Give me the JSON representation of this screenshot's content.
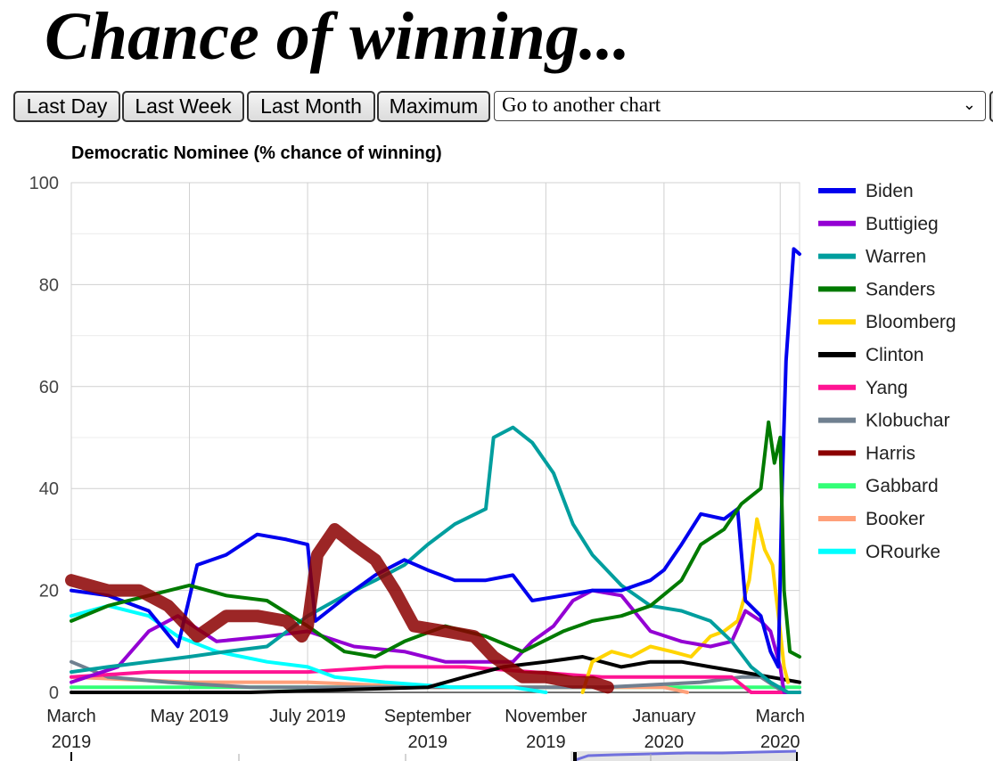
{
  "header": {
    "title": "Chance of winning..."
  },
  "toolbar": {
    "buttons": [
      {
        "label": "Last Day"
      },
      {
        "label": "Last Week"
      },
      {
        "label": "Last Month"
      },
      {
        "label": "Maximum"
      }
    ],
    "select": {
      "value": "Go to another chart",
      "icon": "chevron-down-icon"
    }
  },
  "chart_data": {
    "type": "line",
    "title": "Democratic Nominee (% chance of winning)",
    "xlabel": "",
    "ylabel": "",
    "ylim": [
      0,
      100
    ],
    "xlim": [
      "2019-03-01",
      "2020-03-11"
    ],
    "y_ticks": [
      "0",
      "20",
      "40",
      "60",
      "80",
      "100"
    ],
    "x_ticks": [
      {
        "date": "2019-03-01",
        "lines": [
          "March",
          "2019"
        ]
      },
      {
        "date": "2019-05-01",
        "lines": [
          "May 2019"
        ]
      },
      {
        "date": "2019-07-01",
        "lines": [
          "July 2019"
        ]
      },
      {
        "date": "2019-09-01",
        "lines": [
          "September",
          "2019"
        ]
      },
      {
        "date": "2019-11-01",
        "lines": [
          "November",
          "2019"
        ]
      },
      {
        "date": "2020-01-01",
        "lines": [
          "January",
          "2020"
        ]
      },
      {
        "date": "2020-03-01",
        "lines": [
          "March",
          "2020"
        ]
      }
    ],
    "grid": true,
    "legend_position": "right",
    "series": [
      {
        "name": "Biden",
        "color": "#0000ee",
        "x": [
          "2019-03-01",
          "2019-03-20",
          "2019-04-10",
          "2019-04-25",
          "2019-05-05",
          "2019-05-20",
          "2019-06-05",
          "2019-06-20",
          "2019-07-01",
          "2019-07-05",
          "2019-07-15",
          "2019-07-25",
          "2019-08-05",
          "2019-08-20",
          "2019-09-01",
          "2019-09-15",
          "2019-10-01",
          "2019-10-15",
          "2019-10-25",
          "2019-11-10",
          "2019-11-25",
          "2019-12-10",
          "2019-12-25",
          "2020-01-01",
          "2020-01-10",
          "2020-01-20",
          "2020-02-01",
          "2020-02-08",
          "2020-02-12",
          "2020-02-20",
          "2020-02-25",
          "2020-02-29",
          "2020-03-02",
          "2020-03-04",
          "2020-03-08",
          "2020-03-11"
        ],
        "y": [
          20,
          19,
          16,
          9,
          25,
          27,
          31,
          30,
          29,
          14,
          17,
          20,
          23,
          26,
          24,
          22,
          22,
          23,
          18,
          19,
          20,
          20,
          22,
          24,
          29,
          35,
          34,
          36,
          18,
          15,
          8,
          5,
          40,
          65,
          87,
          86
        ]
      },
      {
        "name": "Buttigieg",
        "color": "#9400d3",
        "x": [
          "2019-03-01",
          "2019-03-25",
          "2019-04-10",
          "2019-04-25",
          "2019-05-15",
          "2019-06-10",
          "2019-07-01",
          "2019-07-25",
          "2019-08-20",
          "2019-09-10",
          "2019-09-25",
          "2019-10-15",
          "2019-10-25",
          "2019-11-05",
          "2019-11-15",
          "2019-11-25",
          "2019-12-10",
          "2019-12-25",
          "2020-01-10",
          "2020-01-25",
          "2020-02-05",
          "2020-02-12",
          "2020-02-20",
          "2020-02-25",
          "2020-03-01",
          "2020-03-03",
          "2020-03-11"
        ],
        "y": [
          2,
          5,
          12,
          15,
          10,
          11,
          12,
          9,
          8,
          6,
          6,
          6,
          10,
          13,
          18,
          20,
          19,
          12,
          10,
          9,
          10,
          16,
          14,
          12,
          5,
          0,
          0
        ]
      },
      {
        "name": "Warren",
        "color": "#009e9e",
        "x": [
          "2019-03-01",
          "2019-03-20",
          "2019-04-10",
          "2019-05-01",
          "2019-05-20",
          "2019-06-10",
          "2019-07-01",
          "2019-07-20",
          "2019-08-05",
          "2019-08-20",
          "2019-09-01",
          "2019-09-15",
          "2019-10-01",
          "2019-10-05",
          "2019-10-15",
          "2019-10-25",
          "2019-11-05",
          "2019-11-15",
          "2019-11-25",
          "2019-12-10",
          "2019-12-25",
          "2020-01-10",
          "2020-01-25",
          "2020-02-05",
          "2020-02-15",
          "2020-02-25",
          "2020-03-05",
          "2020-03-11"
        ],
        "y": [
          4,
          5,
          6,
          7,
          8,
          9,
          15,
          19,
          22,
          25,
          29,
          33,
          36,
          50,
          52,
          49,
          43,
          33,
          27,
          21,
          17,
          16,
          14,
          10,
          5,
          2,
          0,
          0
        ]
      },
      {
        "name": "Sanders",
        "color": "#007a00",
        "x": [
          "2019-03-01",
          "2019-03-20",
          "2019-04-10",
          "2019-05-01",
          "2019-05-20",
          "2019-06-10",
          "2019-07-01",
          "2019-07-20",
          "2019-08-05",
          "2019-08-20",
          "2019-09-10",
          "2019-10-01",
          "2019-10-20",
          "2019-11-10",
          "2019-11-25",
          "2019-12-10",
          "2019-12-25",
          "2020-01-10",
          "2020-01-20",
          "2020-02-01",
          "2020-02-10",
          "2020-02-20",
          "2020-02-24",
          "2020-02-27",
          "2020-03-01",
          "2020-03-03",
          "2020-03-06",
          "2020-03-11"
        ],
        "y": [
          14,
          17,
          19,
          21,
          19,
          18,
          13,
          8,
          7,
          10,
          13,
          11,
          8,
          12,
          14,
          15,
          17,
          22,
          29,
          32,
          37,
          40,
          53,
          45,
          50,
          20,
          8,
          7
        ]
      },
      {
        "name": "Bloomberg",
        "color": "#ffd400",
        "x": [
          "2019-11-20",
          "2019-11-25",
          "2019-12-05",
          "2019-12-15",
          "2019-12-25",
          "2020-01-05",
          "2020-01-15",
          "2020-01-25",
          "2020-02-01",
          "2020-02-08",
          "2020-02-14",
          "2020-02-18",
          "2020-02-22",
          "2020-02-26",
          "2020-03-01",
          "2020-03-03",
          "2020-03-05"
        ],
        "y": [
          0,
          6,
          8,
          7,
          9,
          8,
          7,
          11,
          12,
          14,
          22,
          34,
          28,
          25,
          12,
          5,
          2
        ]
      },
      {
        "name": "Clinton",
        "color": "#000000",
        "x": [
          "2019-03-01",
          "2019-06-01",
          "2019-09-01",
          "2019-09-20",
          "2019-10-10",
          "2019-11-01",
          "2019-11-20",
          "2019-12-10",
          "2019-12-25",
          "2020-01-10",
          "2020-01-25",
          "2020-02-10",
          "2020-02-25",
          "2020-03-11"
        ],
        "y": [
          0,
          0,
          1,
          3,
          5,
          6,
          7,
          5,
          6,
          6,
          5,
          4,
          3,
          2
        ]
      },
      {
        "name": "Yang",
        "color": "#ff1493",
        "x": [
          "2019-03-01",
          "2019-04-10",
          "2019-05-20",
          "2019-07-01",
          "2019-08-10",
          "2019-09-20",
          "2019-10-25",
          "2019-11-30",
          "2020-01-10",
          "2020-02-05",
          "2020-02-15",
          "2020-03-11"
        ],
        "y": [
          3,
          4,
          4,
          4,
          5,
          5,
          4,
          3,
          3,
          3,
          0,
          0
        ]
      },
      {
        "name": "Klobuchar",
        "color": "#708090",
        "x": [
          "2019-03-01",
          "2019-03-20",
          "2019-04-20",
          "2019-06-01",
          "2019-08-01",
          "2019-10-01",
          "2019-12-01",
          "2020-01-20",
          "2020-02-10",
          "2020-02-20",
          "2020-03-03",
          "2020-03-11"
        ],
        "y": [
          6,
          3,
          2,
          1,
          1,
          1,
          1,
          2,
          3,
          3,
          0,
          0
        ]
      },
      {
        "name": "Harris",
        "color": "#8b0000",
        "x": [
          "2019-03-01",
          "2019-03-20",
          "2019-04-05",
          "2019-04-20",
          "2019-05-05",
          "2019-05-20",
          "2019-06-05",
          "2019-06-20",
          "2019-06-28",
          "2019-07-01",
          "2019-07-06",
          "2019-07-15",
          "2019-07-25",
          "2019-08-05",
          "2019-08-15",
          "2019-08-25",
          "2019-09-10",
          "2019-09-25",
          "2019-10-05",
          "2019-10-20",
          "2019-11-01",
          "2019-11-15",
          "2019-11-25",
          "2019-12-03"
        ],
        "y": [
          22,
          20,
          20,
          17,
          11,
          15,
          15,
          14,
          11,
          13,
          27,
          32,
          29,
          26,
          20,
          13,
          12,
          11,
          7,
          3,
          3,
          2,
          2,
          1
        ]
      },
      {
        "name": "Gabbard",
        "color": "#33ff77",
        "x": [
          "2019-03-01",
          "2019-05-01",
          "2019-07-01",
          "2019-09-01",
          "2019-11-01",
          "2020-01-01",
          "2020-03-11"
        ],
        "y": [
          1,
          1,
          1,
          1,
          1,
          1,
          1
        ]
      },
      {
        "name": "Booker",
        "color": "#ffa07a",
        "x": [
          "2019-03-01",
          "2019-05-01",
          "2019-07-01",
          "2019-09-01",
          "2019-11-01",
          "2020-01-01",
          "2020-01-13"
        ],
        "y": [
          3,
          2,
          2,
          1,
          1,
          1,
          0
        ]
      },
      {
        "name": "ORourke",
        "color": "#00ffff",
        "x": [
          "2019-03-01",
          "2019-03-20",
          "2019-04-10",
          "2019-04-25",
          "2019-05-15",
          "2019-06-10",
          "2019-07-01",
          "2019-07-15",
          "2019-08-10",
          "2019-09-15",
          "2019-10-15",
          "2019-11-01"
        ],
        "y": [
          15,
          17,
          15,
          11,
          8,
          6,
          5,
          3,
          2,
          1,
          1,
          0
        ]
      }
    ]
  }
}
